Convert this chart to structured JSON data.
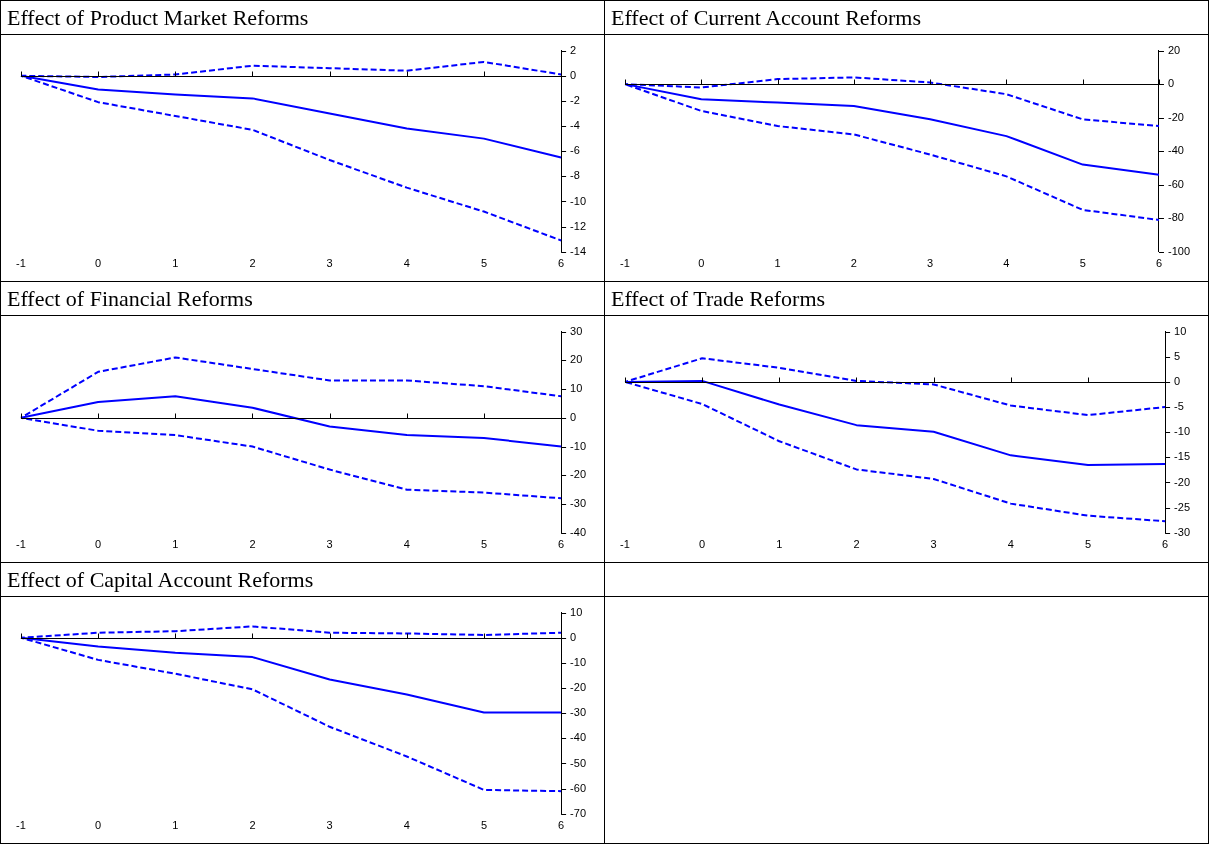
{
  "chart_data": [
    {
      "type": "line",
      "title": "Effect of Product Market Reforms",
      "categories": [
        "-1",
        "0",
        "1",
        "2",
        "3",
        "4",
        "5",
        "6"
      ],
      "ylim": [
        -14,
        2
      ],
      "yticks": [
        -14,
        -12,
        -10,
        -8,
        -6,
        -4,
        -2,
        0,
        2
      ],
      "grid": false,
      "legend": false,
      "ref_lines": [
        {
          "axis": "y",
          "value": 0,
          "color": "#000000"
        }
      ],
      "series": [
        {
          "color": "#0000ff",
          "line_style": "solid",
          "values": [
            0,
            -1.1,
            -1.5,
            -1.8,
            -3.0,
            -4.2,
            -5.0,
            -6.5
          ]
        },
        {
          "color": "#0000ff",
          "line_style": "dashed",
          "values": [
            0,
            -0.1,
            0.1,
            0.8,
            0.6,
            0.4,
            1.1,
            0.1
          ]
        },
        {
          "color": "#0000ff",
          "line_style": "dashed",
          "values": [
            0,
            -2.1,
            -3.2,
            -4.3,
            -6.7,
            -8.9,
            -10.8,
            -13.1
          ]
        }
      ]
    },
    {
      "type": "line",
      "title": "Effect of Current Account Reforms",
      "categories": [
        "-1",
        "0",
        "1",
        "2",
        "3",
        "4",
        "5",
        "6"
      ],
      "ylim": [
        -100,
        20
      ],
      "yticks": [
        -100,
        -80,
        -60,
        -40,
        -20,
        0,
        20
      ],
      "grid": false,
      "legend": false,
      "ref_lines": [
        {
          "axis": "y",
          "value": 0,
          "color": "#000000"
        }
      ],
      "series": [
        {
          "color": "#0000ff",
          "line_style": "solid",
          "values": [
            0,
            -9,
            -11,
            -13,
            -21,
            -31,
            -48,
            -54
          ]
        },
        {
          "color": "#0000ff",
          "line_style": "dashed",
          "values": [
            0,
            -2,
            3,
            4,
            1,
            -6,
            -21,
            -25
          ]
        },
        {
          "color": "#0000ff",
          "line_style": "dashed",
          "values": [
            0,
            -16,
            -25,
            -30,
            -42,
            -55,
            -75,
            -81
          ]
        }
      ]
    },
    {
      "type": "line",
      "title": "Effect of Financial Reforms",
      "categories": [
        "-1",
        "0",
        "1",
        "2",
        "3",
        "4",
        "5",
        "6"
      ],
      "ylim": [
        -40,
        30
      ],
      "yticks": [
        -40,
        -30,
        -20,
        -10,
        0,
        10,
        20,
        30
      ],
      "grid": false,
      "legend": false,
      "ref_lines": [
        {
          "axis": "y",
          "value": 0,
          "color": "#000000"
        }
      ],
      "series": [
        {
          "color": "#0000ff",
          "line_style": "solid",
          "values": [
            0,
            5.5,
            7.5,
            3.5,
            -3,
            -6,
            -7,
            -10
          ]
        },
        {
          "color": "#0000ff",
          "line_style": "dashed",
          "values": [
            0,
            16,
            21,
            17,
            13,
            13,
            11,
            7.5
          ]
        },
        {
          "color": "#0000ff",
          "line_style": "dashed",
          "values": [
            0,
            -4.5,
            -6,
            -10,
            -18,
            -25,
            -26,
            -28
          ]
        }
      ]
    },
    {
      "type": "line",
      "title": "Effect of Trade Reforms",
      "categories": [
        "-1",
        "0",
        "1",
        "2",
        "3",
        "4",
        "5",
        "6"
      ],
      "ylim": [
        -30,
        10
      ],
      "yticks": [
        -30,
        -25,
        -20,
        -15,
        -10,
        -5,
        0,
        5,
        10
      ],
      "grid": false,
      "legend": false,
      "ref_lines": [
        {
          "axis": "y",
          "value": 0,
          "color": "#000000"
        }
      ],
      "series": [
        {
          "color": "#0000ff",
          "line_style": "solid",
          "values": [
            0,
            0.2,
            -4.5,
            -8.6,
            -9.9,
            -14.6,
            -16.5,
            -16.3
          ]
        },
        {
          "color": "#0000ff",
          "line_style": "dashed",
          "values": [
            0,
            4.7,
            2.8,
            0.2,
            -0.5,
            -4.7,
            -6.6,
            -5
          ]
        },
        {
          "color": "#0000ff",
          "line_style": "dashed",
          "values": [
            0,
            -4.4,
            -11.8,
            -17.4,
            -19.3,
            -24.2,
            -26.6,
            -27.7
          ]
        }
      ]
    },
    {
      "type": "line",
      "title": "Effect of Capital Account Reforms",
      "categories": [
        "-1",
        "0",
        "1",
        "2",
        "3",
        "4",
        "5",
        "6"
      ],
      "ylim": [
        -70,
        10
      ],
      "yticks": [
        -70,
        -60,
        -50,
        -40,
        -30,
        -20,
        -10,
        0,
        10
      ],
      "grid": false,
      "legend": false,
      "ref_lines": [
        {
          "axis": "y",
          "value": 0,
          "color": "#000000"
        }
      ],
      "series": [
        {
          "color": "#0000ff",
          "line_style": "solid",
          "values": [
            0,
            -3.5,
            -6,
            -7.7,
            -16.6,
            -22.6,
            -29.7,
            -29.7
          ]
        },
        {
          "color": "#0000ff",
          "line_style": "dashed",
          "values": [
            0,
            2,
            2.6,
            4.5,
            2,
            1.7,
            1.1,
            2
          ]
        },
        {
          "color": "#0000ff",
          "line_style": "dashed",
          "values": [
            0,
            -8.8,
            -14.3,
            -20.5,
            -35.4,
            -47.2,
            -60.5,
            -61
          ]
        }
      ]
    }
  ]
}
